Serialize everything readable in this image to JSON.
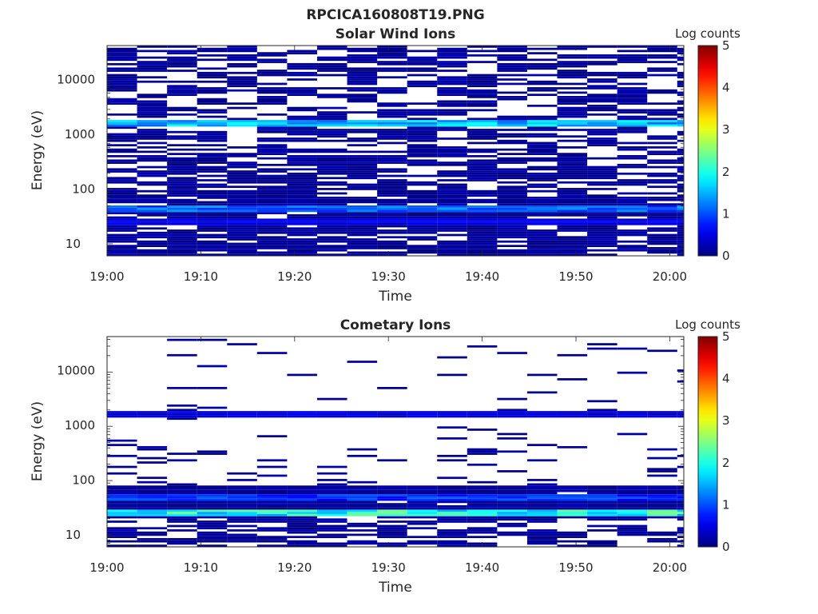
{
  "figure": {
    "title": "RPCICA160808T19.PNG"
  },
  "chart_data": [
    {
      "type": "heatmap",
      "title": "Solar Wind Ions",
      "xlabel": "Time",
      "ylabel": "Energy (eV)",
      "x_ticks": [
        "19:00",
        "19:10",
        "19:20",
        "19:30",
        "19:40",
        "19:50",
        "20:00"
      ],
      "x_range_minutes": [
        0,
        61.5
      ],
      "y_scale": "log",
      "y_ticks": [
        10,
        100,
        1000,
        10000
      ],
      "y_tick_labels": [
        "10",
        "100",
        "1000",
        "10000"
      ],
      "ylim": [
        6,
        45000
      ],
      "colorbar": {
        "label": "Log counts",
        "range": [
          0,
          5
        ],
        "ticks": [
          "0",
          "1",
          "2",
          "3",
          "4",
          "5"
        ],
        "colormap": "jet"
      },
      "grid": false,
      "scan_period_minutes": 3.2,
      "num_energy_bins": 96,
      "features": [
        {
          "energy_ev": 1700,
          "log_counts": 1.8,
          "description": "periodic band near 2 keV"
        },
        {
          "energy_ev": 45,
          "log_counts": 1.3,
          "description": "band near 40-50 eV"
        },
        {
          "energy_ev": 25,
          "log_counts": 0.6,
          "description": "band near 20-30 eV"
        }
      ]
    },
    {
      "type": "heatmap",
      "title": "Cometary Ions",
      "xlabel": "Time",
      "ylabel": "Energy (eV)",
      "x_ticks": [
        "19:00",
        "19:10",
        "19:20",
        "19:30",
        "19:40",
        "19:50",
        "20:00"
      ],
      "x_range_minutes": [
        0,
        61.5
      ],
      "y_scale": "log",
      "y_ticks": [
        10,
        100,
        1000,
        10000
      ],
      "y_tick_labels": [
        "10",
        "100",
        "1000",
        "10000"
      ],
      "ylim": [
        6,
        45000
      ],
      "colorbar": {
        "label": "Log counts",
        "range": [
          0,
          5
        ],
        "ticks": [
          "0",
          "1",
          "2",
          "3",
          "4",
          "5"
        ],
        "colormap": "jet"
      },
      "grid": false,
      "scan_period_minutes": 3.2,
      "num_energy_bins": 96,
      "features": [
        {
          "energy_ev": 1700,
          "log_counts": 0.5,
          "description": "periodic band near 2 keV"
        },
        {
          "energy_ev": 25,
          "log_counts": 2.3,
          "description": "strong band near 20-30 eV"
        },
        {
          "energy_ev": 50,
          "log_counts": 1.0,
          "description": "band near 50 eV"
        }
      ]
    }
  ]
}
